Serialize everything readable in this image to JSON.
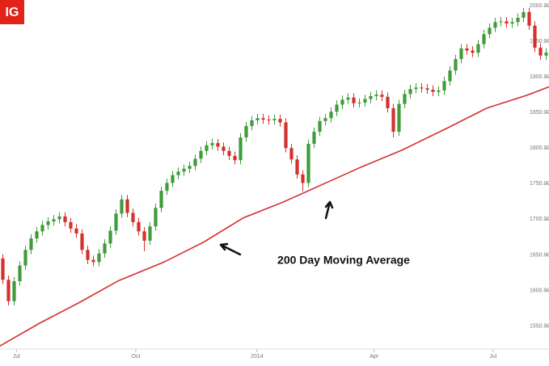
{
  "brand": "IG",
  "chart_data": {
    "type": "candlestick",
    "annotation": "200 Day Moving Average",
    "up_color": "#3f9c3a",
    "down_color": "#d4312d",
    "xlim": [
      0,
      97
    ],
    "ylim": [
      1520,
      2008
    ],
    "xticks": [
      {
        "value": 2.9,
        "label": "Jul"
      },
      {
        "value": 24,
        "label": "Oct"
      },
      {
        "value": 45.4,
        "label": "2014"
      },
      {
        "value": 66.1,
        "label": "Apr"
      },
      {
        "value": 87.1,
        "label": "Jul"
      }
    ],
    "yticks": [
      {
        "value": 1550,
        "label": "1550.00"
      },
      {
        "value": 1600,
        "label": "1600.00"
      },
      {
        "value": 1650,
        "label": "1650.00"
      },
      {
        "value": 1700,
        "label": "1700.00"
      },
      {
        "value": 1750,
        "label": "1750.00"
      },
      {
        "value": 1800,
        "label": "1800.00"
      },
      {
        "value": 1850,
        "label": "1850.00"
      },
      {
        "value": 1900,
        "label": "1900.00"
      },
      {
        "value": 1950,
        "label": "1950.00"
      },
      {
        "value": 2000,
        "label": "2000.00"
      }
    ],
    "open": [
      1645,
      1615,
      1585,
      1613,
      1635,
      1657,
      1673,
      1683,
      1692,
      1697,
      1700,
      1704,
      1696,
      1687,
      1680,
      1657,
      1643,
      1640,
      1652,
      1666,
      1684,
      1708,
      1728,
      1709,
      1696,
      1683,
      1670,
      1690,
      1716,
      1740,
      1751,
      1762,
      1767,
      1771,
      1775,
      1785,
      1796,
      1804,
      1807,
      1802,
      1796,
      1789,
      1783,
      1815,
      1831,
      1839,
      1842,
      1840,
      1839,
      1841,
      1836,
      1800,
      1784,
      1763,
      1751,
      1806,
      1823,
      1838,
      1842,
      1851,
      1861,
      1868,
      1871,
      1863,
      1864,
      1869,
      1873,
      1875,
      1872,
      1856,
      1823,
      1862,
      1876,
      1883,
      1885,
      1884,
      1882,
      1879,
      1881,
      1894,
      1909,
      1925,
      1940,
      1937,
      1934,
      1946,
      1960,
      1969,
      1977,
      1978,
      1975,
      1977,
      1983,
      1991,
      1972,
      1941,
      1930
    ],
    "high": [
      1651,
      1621,
      1619,
      1641,
      1663,
      1679,
      1689,
      1698,
      1703,
      1706,
      1710,
      1710,
      1702,
      1693,
      1686,
      1663,
      1649,
      1658,
      1672,
      1690,
      1714,
      1734,
      1734,
      1715,
      1702,
      1689,
      1696,
      1722,
      1746,
      1757,
      1768,
      1773,
      1777,
      1781,
      1791,
      1802,
      1810,
      1813,
      1813,
      1808,
      1802,
      1795,
      1821,
      1837,
      1845,
      1848,
      1848,
      1846,
      1847,
      1847,
      1842,
      1806,
      1790,
      1769,
      1812,
      1829,
      1844,
      1848,
      1857,
      1867,
      1874,
      1877,
      1877,
      1870,
      1875,
      1879,
      1881,
      1881,
      1878,
      1862,
      1868,
      1882,
      1889,
      1891,
      1891,
      1890,
      1888,
      1887,
      1900,
      1915,
      1931,
      1946,
      1946,
      1943,
      1952,
      1966,
      1975,
      1983,
      1984,
      1984,
      1983,
      1989,
      1997,
      1997,
      1978,
      1947,
      1940
    ],
    "low": [
      1609,
      1579,
      1579,
      1607,
      1629,
      1651,
      1667,
      1677,
      1686,
      1691,
      1694,
      1690,
      1681,
      1674,
      1651,
      1637,
      1634,
      1634,
      1646,
      1660,
      1678,
      1702,
      1703,
      1690,
      1677,
      1655,
      1664,
      1684,
      1710,
      1734,
      1745,
      1756,
      1761,
      1765,
      1769,
      1779,
      1790,
      1798,
      1796,
      1790,
      1783,
      1777,
      1777,
      1809,
      1825,
      1833,
      1834,
      1833,
      1833,
      1830,
      1794,
      1778,
      1757,
      1739,
      1745,
      1800,
      1817,
      1832,
      1836,
      1845,
      1855,
      1862,
      1857,
      1857,
      1858,
      1863,
      1867,
      1866,
      1850,
      1815,
      1817,
      1856,
      1870,
      1877,
      1878,
      1876,
      1873,
      1873,
      1875,
      1888,
      1903,
      1919,
      1931,
      1928,
      1928,
      1940,
      1954,
      1963,
      1971,
      1969,
      1969,
      1971,
      1977,
      1966,
      1935,
      1924,
      1924
    ],
    "close": [
      1615,
      1585,
      1613,
      1635,
      1657,
      1673,
      1683,
      1692,
      1697,
      1700,
      1704,
      1696,
      1687,
      1680,
      1657,
      1643,
      1640,
      1652,
      1666,
      1684,
      1708,
      1728,
      1709,
      1696,
      1683,
      1670,
      1690,
      1716,
      1740,
      1751,
      1762,
      1767,
      1771,
      1775,
      1785,
      1796,
      1804,
      1807,
      1802,
      1796,
      1789,
      1783,
      1815,
      1831,
      1839,
      1842,
      1840,
      1839,
      1841,
      1836,
      1800,
      1784,
      1763,
      1751,
      1806,
      1823,
      1838,
      1842,
      1851,
      1861,
      1868,
      1871,
      1863,
      1864,
      1869,
      1873,
      1875,
      1872,
      1856,
      1823,
      1862,
      1876,
      1883,
      1885,
      1884,
      1882,
      1879,
      1881,
      1894,
      1909,
      1925,
      1940,
      1937,
      1934,
      1946,
      1960,
      1969,
      1977,
      1978,
      1975,
      1977,
      1983,
      1991,
      1972,
      1941,
      1930,
      1934
    ],
    "moving_average": {
      "color": "#d4312d",
      "x": [
        0,
        7,
        14,
        21,
        29,
        36,
        43,
        50,
        57,
        64,
        71,
        79,
        86,
        93,
        97
      ],
      "values": [
        1522,
        1554,
        1583,
        1614,
        1640,
        1668,
        1702,
        1724,
        1749,
        1774,
        1797,
        1828,
        1856,
        1874,
        1886
      ]
    }
  }
}
